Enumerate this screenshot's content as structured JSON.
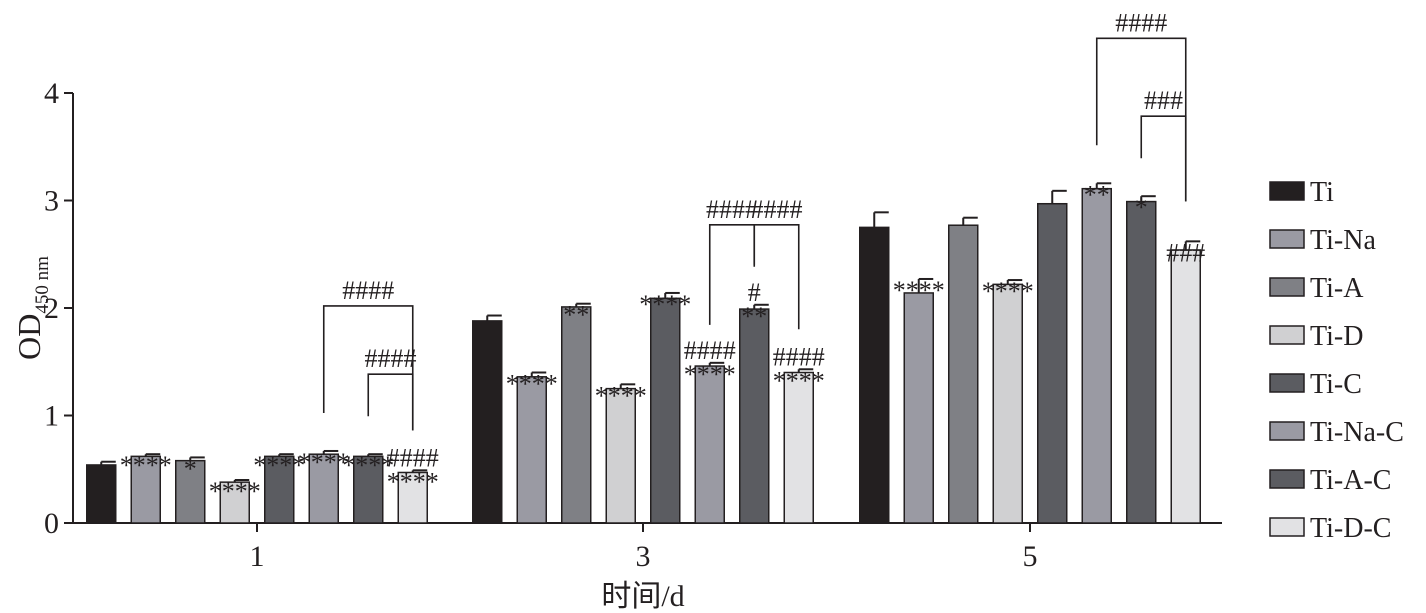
{
  "chart_data": {
    "type": "bar",
    "title": "",
    "xlabel": "时间/d",
    "ylabel": "OD",
    "ylabel_sub": "450 nm",
    "ylim": [
      0,
      4
    ],
    "yticks": [
      "0",
      "1",
      "2",
      "3",
      "4"
    ],
    "categories": [
      "1",
      "3",
      "5"
    ],
    "legend_position": "right",
    "series": [
      {
        "name": "Ti",
        "color": "#231f20",
        "values": [
          0.54,
          1.88,
          2.75
        ],
        "errors": [
          0.03,
          0.05,
          0.14
        ]
      },
      {
        "name": "Ti-Na",
        "color": "#9a9aa3",
        "values": [
          0.62,
          1.36,
          2.14
        ],
        "errors": [
          0.02,
          0.04,
          0.13
        ]
      },
      {
        "name": "Ti-A",
        "color": "#7f8085",
        "values": [
          0.58,
          2.01,
          2.77
        ],
        "errors": [
          0.03,
          0.03,
          0.07
        ]
      },
      {
        "name": "Ti-D",
        "color": "#d0d0d2",
        "values": [
          0.38,
          1.25,
          2.22
        ],
        "errors": [
          0.02,
          0.04,
          0.04
        ]
      },
      {
        "name": "Ti-C",
        "color": "#5b5c61",
        "values": [
          0.62,
          2.09,
          2.97
        ],
        "errors": [
          0.02,
          0.05,
          0.12
        ]
      },
      {
        "name": "Ti-Na-C",
        "color": "#9a9aa3",
        "values": [
          0.64,
          1.46,
          3.11
        ],
        "errors": [
          0.03,
          0.03,
          0.05
        ]
      },
      {
        "name": "Ti-A-C",
        "color": "#5b5c61",
        "values": [
          0.62,
          1.99,
          2.99
        ],
        "errors": [
          0.02,
          0.04,
          0.05
        ]
      },
      {
        "name": "Ti-D-C",
        "color": "#e2e2e4",
        "values": [
          0.47,
          1.4,
          2.54
        ],
        "errors": [
          0.02,
          0.03,
          0.08
        ]
      }
    ],
    "annotations": [
      {
        "group": 0,
        "bar": 1,
        "lines": [
          "****"
        ]
      },
      {
        "group": 0,
        "bar": 2,
        "lines": [
          "*"
        ]
      },
      {
        "group": 0,
        "bar": 3,
        "lines": [
          "****"
        ]
      },
      {
        "group": 0,
        "bar": 4,
        "lines": [
          "****"
        ]
      },
      {
        "group": 0,
        "bar": 5,
        "lines": [
          "****"
        ]
      },
      {
        "group": 0,
        "bar": 6,
        "lines": [
          "****"
        ]
      },
      {
        "group": 0,
        "bar": 7,
        "lines": [
          "####",
          "****"
        ]
      },
      {
        "group": 1,
        "bar": 1,
        "lines": [
          "****"
        ]
      },
      {
        "group": 1,
        "bar": 2,
        "lines": [
          "**"
        ]
      },
      {
        "group": 1,
        "bar": 3,
        "lines": [
          "****"
        ]
      },
      {
        "group": 1,
        "bar": 4,
        "lines": [
          "****"
        ]
      },
      {
        "group": 1,
        "bar": 5,
        "lines": [
          "####",
          "****"
        ]
      },
      {
        "group": 1,
        "bar": 6,
        "lines": [
          "#",
          "**"
        ]
      },
      {
        "group": 1,
        "bar": 7,
        "lines": [
          "####",
          "****"
        ]
      },
      {
        "group": 2,
        "bar": 1,
        "lines": [
          "****"
        ]
      },
      {
        "group": 2,
        "bar": 3,
        "lines": [
          "****"
        ]
      },
      {
        "group": 2,
        "bar": 5,
        "lines": [
          "**"
        ]
      },
      {
        "group": 2,
        "bar": 6,
        "lines": [
          "*"
        ]
      },
      {
        "group": 2,
        "bar": 7,
        "lines": [
          "###"
        ]
      }
    ],
    "brackets": [
      {
        "group": 0,
        "from": 5,
        "to": 7,
        "label": "####"
      },
      {
        "group": 0,
        "from": 6,
        "to": 7,
        "label": "####"
      },
      {
        "group": 1,
        "from": 5,
        "to": 6,
        "label": "####"
      },
      {
        "group": 1,
        "from": 6,
        "to": 7,
        "label": "####"
      },
      {
        "group": 2,
        "from": 5,
        "to": 7,
        "label": "####"
      },
      {
        "group": 2,
        "from": 6,
        "to": 7,
        "label": "###"
      }
    ]
  }
}
